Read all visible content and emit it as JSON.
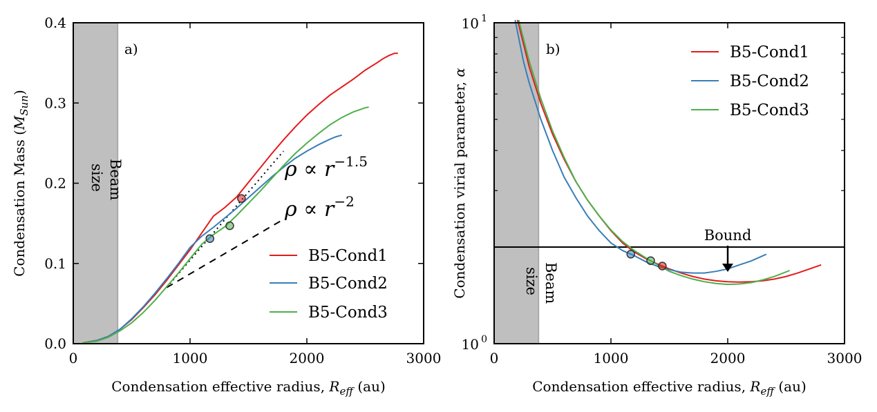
{
  "chart_data": [
    {
      "type": "line",
      "panel": "a)",
      "xlabel_text": "Condensation effective radius, ",
      "xlabel_math": "R",
      "xlabel_sub": "eff",
      "xlabel_unit": " (au)",
      "ylabel_text": "Condensation Mass (",
      "ylabel_math": "M",
      "ylabel_sub": "Sun",
      "ylabel_close": ")",
      "xlim": [
        0,
        3000
      ],
      "ylim": [
        0,
        0.4
      ],
      "xticks": [
        0,
        1000,
        2000,
        3000
      ],
      "xtick_labels": [
        "0",
        "1000",
        "2000",
        "3000"
      ],
      "yticks": [
        0,
        0.1,
        0.2,
        0.3,
        0.4
      ],
      "ytick_labels": [
        "0.0",
        "0.1",
        "0.2",
        "0.3",
        "0.4"
      ],
      "beam": {
        "x_max": 380,
        "label_line1": "Beam",
        "label_line2": "size"
      },
      "legend_placement": "lower-right",
      "series": [
        {
          "name": "B5-Cond1",
          "color": "#e41a1c",
          "x": [
            80,
            200,
            300,
            400,
            500,
            600,
            700,
            800,
            900,
            1000,
            1100,
            1200,
            1300,
            1400,
            1500,
            1600,
            1700,
            1800,
            1900,
            2000,
            2100,
            2200,
            2300,
            2400,
            2500,
            2600,
            2650,
            2700,
            2750,
            2780
          ],
          "y": [
            0.001,
            0.004,
            0.009,
            0.018,
            0.03,
            0.045,
            0.061,
            0.079,
            0.098,
            0.117,
            0.138,
            0.159,
            0.17,
            0.183,
            0.201,
            0.219,
            0.237,
            0.254,
            0.27,
            0.285,
            0.298,
            0.31,
            0.32,
            0.33,
            0.341,
            0.35,
            0.355,
            0.359,
            0.362,
            0.362
          ],
          "marker": {
            "x": 1440,
            "y": 0.181
          }
        },
        {
          "name": "B5-Cond2",
          "color": "#377eb8",
          "x": [
            80,
            200,
            300,
            400,
            500,
            600,
            700,
            800,
            900,
            1000,
            1100,
            1200,
            1300,
            1400,
            1500,
            1600,
            1700,
            1800,
            1900,
            2000,
            2100,
            2200,
            2250,
            2300
          ],
          "y": [
            0.001,
            0.004,
            0.009,
            0.018,
            0.031,
            0.046,
            0.063,
            0.081,
            0.1,
            0.12,
            0.134,
            0.145,
            0.157,
            0.169,
            0.182,
            0.195,
            0.208,
            0.22,
            0.231,
            0.24,
            0.248,
            0.255,
            0.258,
            0.26
          ],
          "marker": {
            "x": 1170,
            "y": 0.131
          }
        },
        {
          "name": "B5-Cond3",
          "color": "#4daf4a",
          "x": [
            80,
            200,
            300,
            400,
            500,
            600,
            700,
            800,
            900,
            1000,
            1100,
            1200,
            1300,
            1400,
            1500,
            1600,
            1700,
            1800,
            1900,
            2000,
            2100,
            2200,
            2300,
            2400,
            2500,
            2530
          ],
          "y": [
            0.001,
            0.003,
            0.008,
            0.016,
            0.026,
            0.039,
            0.054,
            0.071,
            0.088,
            0.106,
            0.124,
            0.136,
            0.146,
            0.16,
            0.175,
            0.19,
            0.206,
            0.222,
            0.237,
            0.25,
            0.262,
            0.273,
            0.282,
            0.289,
            0.294,
            0.295
          ],
          "marker": {
            "x": 1340,
            "y": 0.147
          }
        }
      ],
      "guides": [
        {
          "label_math": "ρ ∝ r",
          "label_exp": "−1.5",
          "style": "dotted",
          "x": [
            800,
            1800
          ],
          "y": [
            0.07,
            0.24
          ]
        },
        {
          "label_math": "ρ ∝ r",
          "label_exp": "−2",
          "style": "dashed",
          "x": [
            800,
            1800
          ],
          "y": [
            0.07,
            0.155
          ]
        }
      ]
    },
    {
      "type": "line",
      "panel": "b)",
      "xlabel_text": "Condensation effective radius, ",
      "xlabel_math": "R",
      "xlabel_sub": "eff",
      "xlabel_unit": " (au)",
      "ylabel_text": "Condensation virial parameter, ",
      "ylabel_math": "α",
      "xlim": [
        0,
        3000
      ],
      "ylim": [
        1,
        10
      ],
      "yscale": "log",
      "xticks": [
        0,
        1000,
        2000,
        3000
      ],
      "xtick_labels": [
        "0",
        "1000",
        "2000",
        "3000"
      ],
      "ytick_base": "10",
      "ytick_exps": [
        "0",
        "1"
      ],
      "beam": {
        "x_max": 380,
        "label_line1": "Beam",
        "label_line2": "size"
      },
      "bound": {
        "y": 2,
        "label": "Bound",
        "arrow_x": 2000
      },
      "legend_placement": "upper-right",
      "series": [
        {
          "name": "B5-Cond1",
          "color": "#e41a1c",
          "x": [
            200,
            300,
            400,
            500,
            600,
            700,
            800,
            900,
            1000,
            1100,
            1200,
            1300,
            1400,
            1500,
            1600,
            1700,
            1800,
            1900,
            2000,
            2100,
            2200,
            2300,
            2400,
            2500,
            2600,
            2700,
            2800
          ],
          "y": [
            10.2,
            7.3,
            5.6,
            4.5,
            3.75,
            3.2,
            2.8,
            2.5,
            2.25,
            2.06,
            1.93,
            1.84,
            1.77,
            1.71,
            1.66,
            1.62,
            1.59,
            1.57,
            1.56,
            1.555,
            1.56,
            1.57,
            1.59,
            1.62,
            1.66,
            1.71,
            1.76
          ]
        },
        {
          "name": "B5-Cond2",
          "color": "#377eb8",
          "x": [
            180,
            250,
            300,
            400,
            500,
            600,
            700,
            800,
            900,
            1000,
            1100,
            1200,
            1300,
            1400,
            1500,
            1600,
            1700,
            1800,
            1900,
            2000,
            2100,
            2200,
            2330
          ],
          "y": [
            10.2,
            7.6,
            6.5,
            5.0,
            4.0,
            3.3,
            2.85,
            2.5,
            2.25,
            2.06,
            1.95,
            1.88,
            1.8,
            1.74,
            1.7,
            1.67,
            1.66,
            1.66,
            1.68,
            1.71,
            1.76,
            1.81,
            1.9
          ]
        },
        {
          "name": "B5-Cond3",
          "color": "#4daf4a",
          "x": [
            210,
            300,
            400,
            500,
            600,
            700,
            800,
            900,
            1000,
            1100,
            1200,
            1300,
            1400,
            1500,
            1600,
            1700,
            1800,
            1900,
            2000,
            2100,
            2200,
            2300,
            2400,
            2530
          ],
          "y": [
            10.2,
            7.6,
            5.8,
            4.6,
            3.8,
            3.2,
            2.8,
            2.5,
            2.26,
            2.08,
            1.95,
            1.85,
            1.76,
            1.68,
            1.63,
            1.59,
            1.56,
            1.54,
            1.53,
            1.535,
            1.55,
            1.58,
            1.62,
            1.69
          ]
        }
      ]
    }
  ],
  "colors": {
    "cond1": "#e41a1c",
    "cond2": "#377eb8",
    "cond3": "#4daf4a",
    "beam_band": "#bfbfbf"
  }
}
